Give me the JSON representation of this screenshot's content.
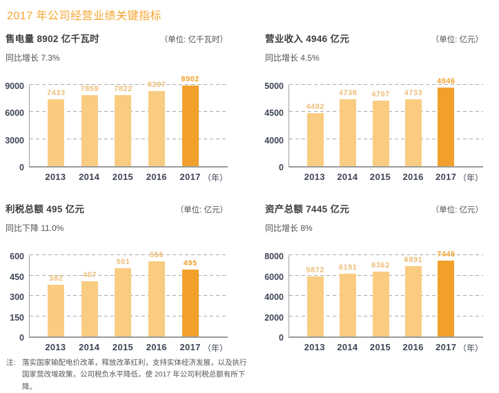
{
  "page": {
    "title": "2017 年公司经营业绩关键指标",
    "footnote": {
      "prefix": "注:",
      "text": "落实国家输配电价改革，释放改革红利，支持实体经济发展，以及执行国家营改增政策，公司税负水平降低，使 2017 年公司利税总额有所下降。"
    }
  },
  "colors": {
    "accent_orange": "#F5A52F",
    "bar_light": "#F9CC81",
    "bar_highlight": "#F2A02C",
    "value_label_light": "#EDBD78",
    "axis_text": "#3E4556",
    "grid_line": "#A8A8A8"
  },
  "chart_data": [
    {
      "type": "bar",
      "title": "售电量 8902 亿千瓦时",
      "unit_label": "（单位: 亿千瓦时）",
      "subtitle": "同比增长 7.3%",
      "categories": [
        "2013",
        "2014",
        "2015",
        "2016",
        "2017"
      ],
      "values": [
        7433,
        7859,
        7822,
        8297,
        8902
      ],
      "yticks": [
        0,
        3000,
        6000,
        9000
      ],
      "ylim": [
        0,
        9000
      ],
      "x_axis_suffix": "（年）",
      "highlight_index": 4,
      "grid": true,
      "legend": "none"
    },
    {
      "type": "bar",
      "title": "营业收入 4946 亿元",
      "unit_label": "（单位: 亿元）",
      "subtitle": "同比增长 4.5%",
      "categories": [
        "2013",
        "2014",
        "2015",
        "2016",
        "2017"
      ],
      "values": [
        4482,
        4738,
        4707,
        4733,
        4946
      ],
      "yticks": [
        0,
        4000,
        4500,
        5000
      ],
      "ylim": [
        0,
        5000
      ],
      "broken_axis": true,
      "x_axis_suffix": "（年）",
      "highlight_index": 4,
      "grid": true,
      "legend": "none"
    },
    {
      "type": "bar",
      "title": "利税总额 495 亿元",
      "unit_label": "（单位: 亿元）",
      "subtitle": "同比下降 11.0%",
      "categories": [
        "2013",
        "2014",
        "2015",
        "2016",
        "2017"
      ],
      "values": [
        382,
        407,
        501,
        556,
        495
      ],
      "yticks": [
        0,
        150,
        300,
        450,
        600
      ],
      "ylim": [
        0,
        600
      ],
      "x_axis_suffix": "（年）",
      "highlight_index": 4,
      "grid": true,
      "legend": "none"
    },
    {
      "type": "bar",
      "title": "资产总额 7445 亿元",
      "unit_label": "（单位: 亿元）",
      "subtitle": "同比增长 8%",
      "categories": [
        "2013",
        "2014",
        "2015",
        "2016",
        "2017"
      ],
      "values": [
        5872,
        6191,
        6362,
        6891,
        7445
      ],
      "yticks": [
        0,
        2000,
        4000,
        6000,
        8000
      ],
      "ylim": [
        0,
        8000
      ],
      "x_axis_suffix": "（年）",
      "highlight_index": 4,
      "grid": true,
      "legend": "none"
    }
  ]
}
